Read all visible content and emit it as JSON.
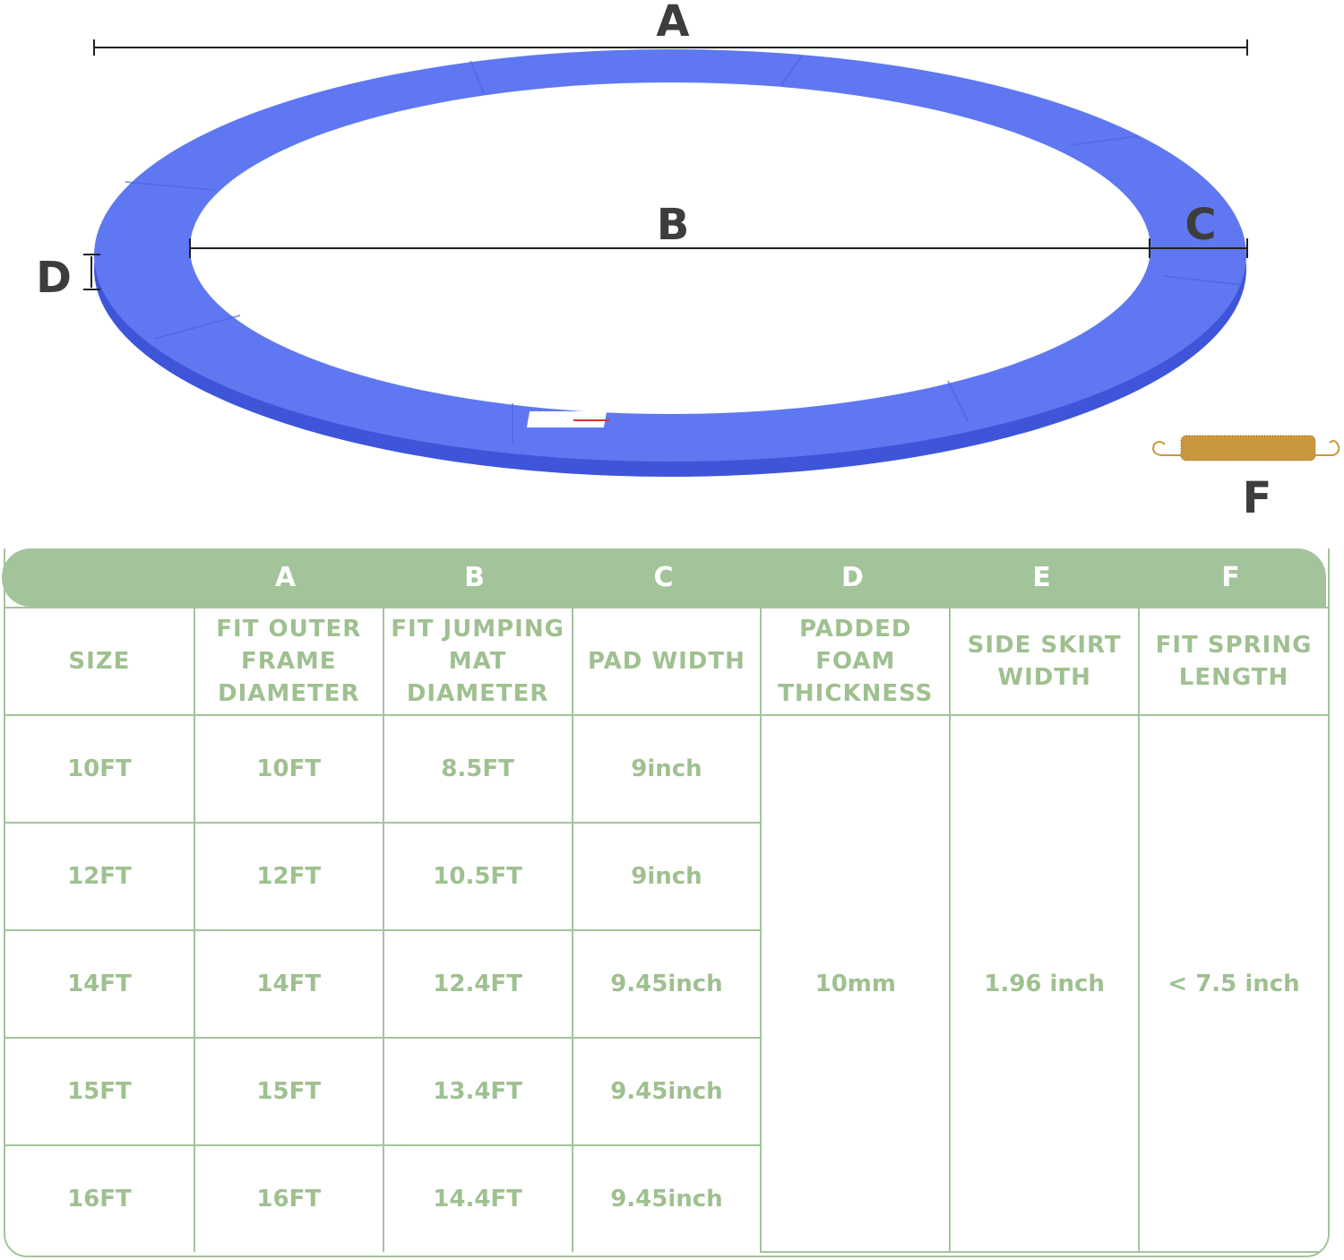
{
  "diagram": {
    "labels": {
      "a": "A",
      "b": "B",
      "c": "C",
      "d": "D",
      "f": "F"
    },
    "colors": {
      "pad_top": "#5f78f2",
      "pad_side": "#3e55d9",
      "spring": "#c9973c"
    }
  },
  "table": {
    "band_letters": [
      "A",
      "B",
      "C",
      "D",
      "E",
      "F"
    ],
    "headers": [
      "SIZE",
      "FIT OUTER FRAME DIAMETER",
      "FIT JUMPING MAT DIAMETER",
      "PAD WIDTH",
      "PADDED FOAM THICKNESS",
      "SIDE SKIRT WIDTH",
      "FIT SPRING LENGTH"
    ],
    "rows": [
      {
        "size": "10FT",
        "outer": "10FT",
        "mat": "8.5FT",
        "pad": "9inch"
      },
      {
        "size": "12FT",
        "outer": "12FT",
        "mat": "10.5FT",
        "pad": "9inch"
      },
      {
        "size": "14FT",
        "outer": "14FT",
        "mat": "12.4FT",
        "pad": "9.45inch"
      },
      {
        "size": "15FT",
        "outer": "15FT",
        "mat": "13.4FT",
        "pad": "9.45inch"
      },
      {
        "size": "16FT",
        "outer": "16FT",
        "mat": "14.4FT",
        "pad": "9.45inch"
      }
    ],
    "shared": {
      "thickness": "10mm",
      "skirt": "1.96 inch",
      "spring": "< 7.5 inch"
    },
    "colors": {
      "accent": "#a3c49a",
      "text": "#9fc090"
    }
  }
}
